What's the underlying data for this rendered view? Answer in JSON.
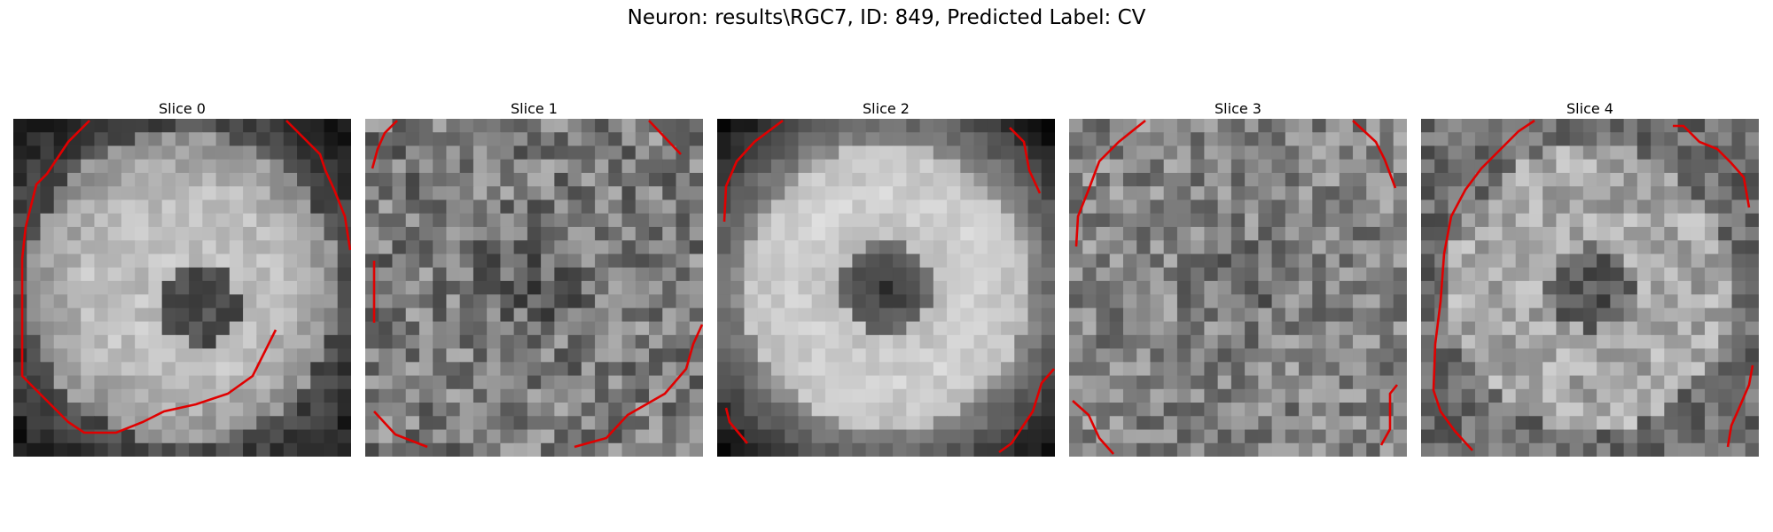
{
  "figure": {
    "title": "Neuron: results\\RGC7, ID: 849, Predicted Label: CV"
  },
  "panels": [
    {
      "title": "Slice 0",
      "pattern": "bright-disk-with-dark-spot",
      "roi_outline_color": "#e00000"
    },
    {
      "title": "Slice 1",
      "pattern": "noisy-textured",
      "roi_outline_color": "#e00000"
    },
    {
      "title": "Slice 2",
      "pattern": "bright-ring-dark-center",
      "roi_outline_color": "#e00000"
    },
    {
      "title": "Slice 3",
      "pattern": "noisy-dim-center",
      "roi_outline_color": "#e00000"
    },
    {
      "title": "Slice 4",
      "pattern": "bright-ring-dark-center-faint",
      "roi_outline_color": "#e00000"
    }
  ],
  "colors": {
    "background": "#ffffff",
    "roi_outline": "#e00000",
    "colormap": "grayscale"
  }
}
